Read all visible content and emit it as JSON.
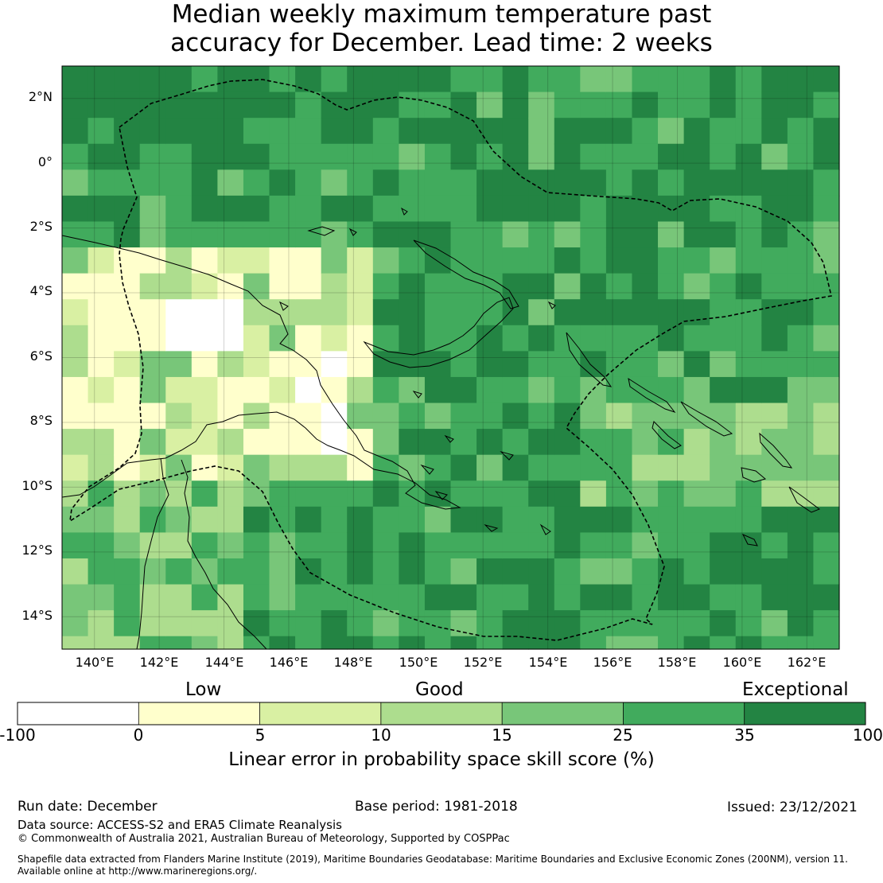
{
  "title": {
    "line1": "Median weekly maximum temperature past",
    "line2": "accuracy for December. Lead time: 2 weeks"
  },
  "map": {
    "lat_labels": [
      "2°N",
      "0°",
      "2°S",
      "4°S",
      "6°S",
      "8°S",
      "10°S",
      "12°S",
      "14°S"
    ],
    "lon_labels": [
      "140°E",
      "142°E",
      "144°E",
      "146°E",
      "148°E",
      "150°E",
      "152°E",
      "154°E",
      "156°E",
      "158°E",
      "160°E",
      "162°E"
    ],
    "lon_range": [
      139,
      163
    ],
    "lat_range": [
      -15,
      3
    ],
    "cell_degrees": 0.8
  },
  "colorbar": {
    "categories": [
      "Low",
      "Good",
      "Exceptional"
    ],
    "ticks": [
      "-100",
      "0",
      "5",
      "10",
      "15",
      "25",
      "35",
      "100"
    ],
    "colors": [
      "#ffffff",
      "#ffffcc",
      "#d9f0a3",
      "#addd8e",
      "#78c679",
      "#41ab5d",
      "#238443"
    ],
    "label": "Linear error in probability space skill score (%)"
  },
  "footer": {
    "run_date": "Run date: December",
    "base_period": "Base period: 1981-2018",
    "issued": "Issued: 23/12/2021",
    "data_source": "Data source: ACCESS-S2 and ERA5 Climate Reanalysis",
    "copyright": "© Commonwealth of Australia 2021, Australian Bureau of Meteorology, Supported by COSPPac",
    "shapefile_line1": "Shapefile data extracted from Flanders Marine Institute (2019), Maritime Boundaries Geodatabase: Maritime Boundaries and Exclusive Economic Zones (200NM), version 11.",
    "shapefile_line2": "Available online at http://www.marineregions.org/."
  }
}
